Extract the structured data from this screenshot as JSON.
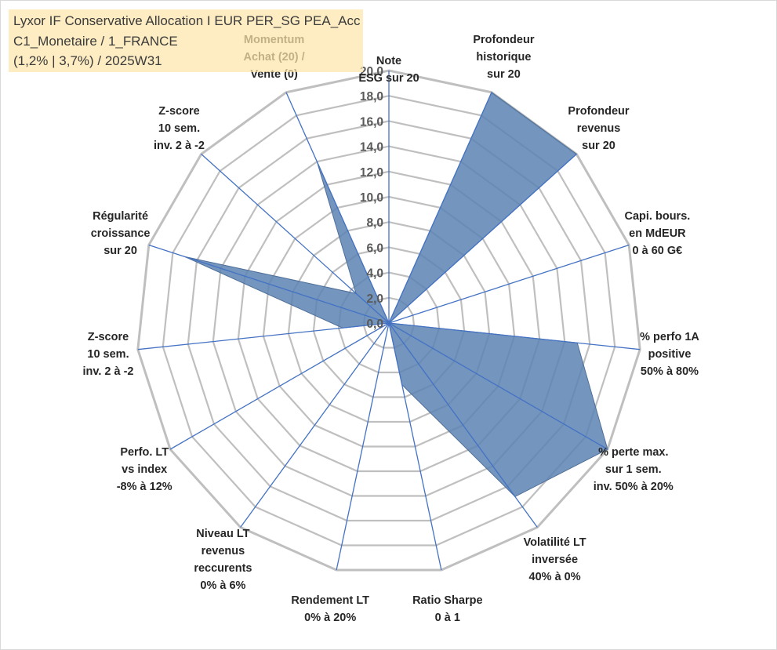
{
  "chart_data": {
    "type": "radar",
    "title_lines": [
      "Lyxor IF Conservative Allocation I EUR PER_SG PEA_Acc",
      "C1_Monetaire / 1_FRANCE",
      "(1,2% | 3,7%) / 2025W31"
    ],
    "axes": [
      {
        "label": [
          "Note",
          "ESG sur 20"
        ],
        "value": 0.0
      },
      {
        "label": [
          "Profondeur",
          "historique",
          "sur 20"
        ],
        "value": 20.0
      },
      {
        "label": [
          "Profondeur",
          "revenus",
          "sur 20"
        ],
        "value": 20.0
      },
      {
        "label": [
          "Capi. bours.",
          "en MdEUR",
          "0 à 60 G€"
        ],
        "value": 0.0
      },
      {
        "label": [
          "% perfo 1A",
          "positive",
          "50% à 80%"
        ],
        "value": 15.0
      },
      {
        "label": [
          "% perte max.",
          "sur 1 sem.",
          "inv. 50% à 20%"
        ],
        "value": 20.0
      },
      {
        "label": [
          "Volatilité LT",
          "inversée",
          "40% à 0%"
        ],
        "value": 17.0
      },
      {
        "label": [
          "Ratio Sharpe",
          "0 à 1"
        ],
        "value": 5.0
      },
      {
        "label": [
          "Rendement LT",
          "0% à 20%"
        ],
        "value": 0.0
      },
      {
        "label": [
          "Niveau LT",
          "revenus",
          "reccurents",
          "0% à 6%"
        ],
        "value": 0.0
      },
      {
        "label": [
          "Perfo. LT",
          "vs index",
          "-8% à 12%"
        ],
        "value": 0.0
      },
      {
        "label": [
          "Z-score",
          "10 sem.",
          "inv. 2 à -2"
        ],
        "value": 3.7
      },
      {
        "label": [
          "Régularité",
          "croissance",
          "sur 20"
        ],
        "value": 17.0
      },
      {
        "label": [
          "Z-score",
          "10 sem.",
          "inv. 2 à -2"
        ],
        "value": 3.5
      },
      {
        "label": [
          "Momentum",
          "Achat (20) /",
          "Vente (0)"
        ],
        "value": 14.0
      }
    ],
    "ticks": [
      "0,0",
      "2,0",
      "4,0",
      "6,0",
      "8,0",
      "10,0",
      "12,0",
      "14,0",
      "16,0",
      "18,0",
      "20,0"
    ],
    "rmin": 0,
    "rmax": 20,
    "grid": true,
    "colors": {
      "fill": "#5b83b3",
      "spoke": "#4472c4",
      "grid": "#bfbfbf",
      "title_bg": "#fde4aa"
    }
  }
}
